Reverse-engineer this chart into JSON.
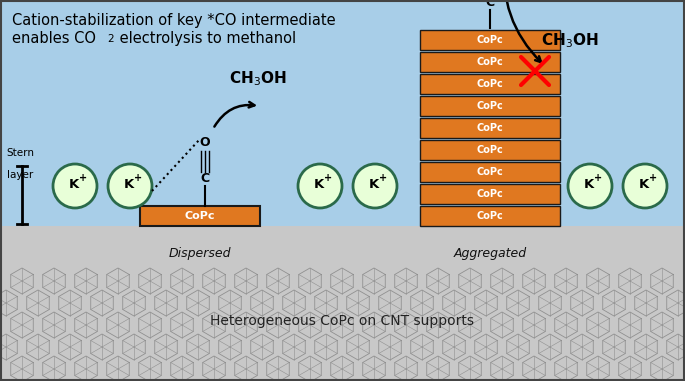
{
  "bg_sky_color": "#A8CEE8",
  "bg_ground_color": "#C8C8C8",
  "orange_color": "#E07820",
  "dark_border": "#1a1a1a",
  "ion_fill": "#E8FFD8",
  "ion_border": "#2A6A4A",
  "title_line1": "Cation-stabilization of key *CO intermediate",
  "title_line2_a": "enables CO",
  "title_line2_b": "2",
  "title_line2_c": " electrolysis to methanol",
  "ground_text": "Heterogeneous CoPc on CNT supports",
  "dispersed_label": "Dispersed",
  "aggregated_label": "Aggregated",
  "copc_label": "CoPc",
  "n_aggregated_layers": 9,
  "fig_w": 6.85,
  "fig_h": 3.81,
  "dpi": 100
}
